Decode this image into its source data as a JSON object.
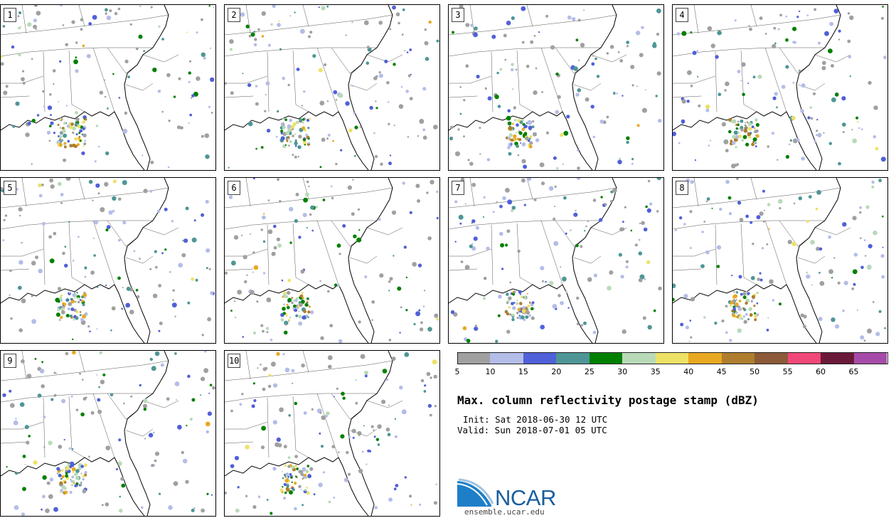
{
  "panels": [
    {
      "label": "1"
    },
    {
      "label": "2"
    },
    {
      "label": "3"
    },
    {
      "label": "4"
    },
    {
      "label": "5"
    },
    {
      "label": "6"
    },
    {
      "label": "7"
    },
    {
      "label": "8"
    },
    {
      "label": "9"
    },
    {
      "label": "10"
    }
  ],
  "colorbar": {
    "ticks": [
      "5",
      "10",
      "15",
      "20",
      "25",
      "30",
      "35",
      "40",
      "45",
      "50",
      "55",
      "60",
      "65"
    ],
    "colors": [
      "#a0a0a0",
      "#b4bce8",
      "#5060d8",
      "#4e9696",
      "#008000",
      "#b8dab8",
      "#ede266",
      "#e8a821",
      "#ae7e2e",
      "#8c5a38",
      "#f04878",
      "#6a1a38",
      "#a64ca8"
    ]
  },
  "title": "Max. column reflectivity postage stamp (dBZ)",
  "init": "Init: Sat 2018-06-30 12 UTC",
  "valid": "Valid: Sun 2018-07-01 05 UTC",
  "logo": {
    "name": "NCAR",
    "url": "ensemble.ucar.edu"
  }
}
